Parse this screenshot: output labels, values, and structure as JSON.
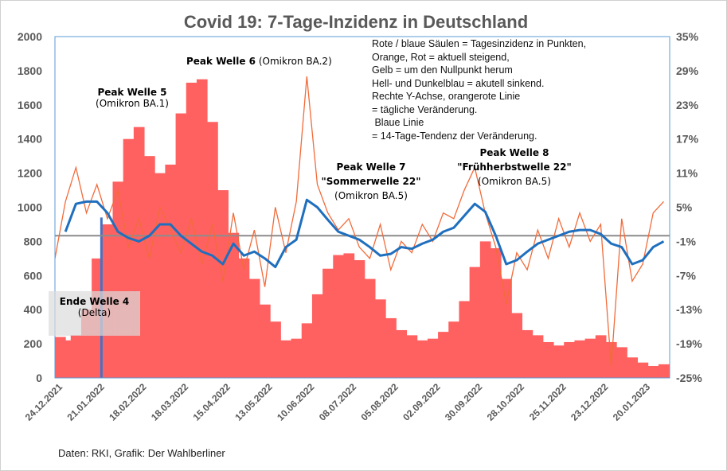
{
  "chart_data": {
    "type": "bar",
    "title": "Covid 19: 7-Tage-Inzidenz in Deutschland",
    "start_date": "24.12.2021",
    "step_days": 7,
    "x_tick_labels": [
      "24.12.2021",
      "21.01.2022",
      "18.02.2022",
      "18.03.2022",
      "15.04.2022",
      "13.05.2022",
      "10.06.2022",
      "08.07.2022",
      "05.08.2022",
      "02.09.2022",
      "30.09.2022",
      "28.10.2022",
      "25.11.2022",
      "23.12.2022",
      "20.01.2023"
    ],
    "y_left": {
      "min": 0,
      "max": 2000,
      "ticks": [
        0,
        200,
        400,
        600,
        800,
        1000,
        1200,
        1400,
        1600,
        1800,
        2000
      ]
    },
    "y_right": {
      "min": -25,
      "max": 35,
      "ticks": [
        "35%",
        "29%",
        "23%",
        "17%",
        "11%",
        "5%",
        "-1%",
        "-7%",
        "-13%",
        "-19%",
        "-25%"
      ],
      "tick_values": [
        35,
        29,
        23,
        17,
        11,
        5,
        -1,
        -7,
        -13,
        -19,
        -25
      ]
    },
    "series": [
      {
        "name": "Tagesinzidenz",
        "axis": "left",
        "type": "bar",
        "color": "#ff6161",
        "values": [
          240,
          220,
          250,
          400,
          700,
          900,
          1150,
          1400,
          1470,
          1300,
          1200,
          1250,
          1550,
          1730,
          1750,
          1500,
          1100,
          850,
          700,
          580,
          430,
          330,
          220,
          230,
          320,
          490,
          640,
          720,
          730,
          690,
          580,
          460,
          350,
          280,
          250,
          220,
          230,
          270,
          330,
          450,
          650,
          800,
          760,
          580,
          380,
          280,
          250,
          210,
          190,
          210,
          220,
          230,
          250,
          210,
          180,
          120,
          90,
          70,
          80
        ]
      },
      {
        "name": "Tägliche Veränderung",
        "axis": "right",
        "type": "line",
        "color": "#f26b3a",
        "values": [
          -4,
          6,
          12,
          4,
          9,
          3,
          8,
          -2,
          3,
          -4,
          5,
          1,
          -3,
          3,
          -5,
          2,
          -8,
          4,
          -6,
          1,
          -9,
          5,
          -3,
          6,
          28,
          9,
          4,
          1,
          3,
          -2,
          -4,
          2,
          -6,
          -1,
          -3,
          2,
          -1,
          4,
          3,
          8,
          12,
          4,
          -2,
          -12,
          -3,
          -6,
          1,
          -4,
          3,
          -2,
          4,
          -1,
          2,
          -23,
          3,
          -8,
          -5,
          4,
          6
        ]
      },
      {
        "name": "14-Tage-Tendenz",
        "axis": "right",
        "type": "line",
        "color": "#1f6fbf",
        "values": [
          null,
          0.7,
          5.6,
          6,
          6,
          4,
          0.7,
          -0.4,
          -1,
          0,
          2,
          2,
          0,
          -1.4,
          -2.8,
          -3.5,
          -5,
          -1.4,
          -3.5,
          -2.8,
          -4,
          -5.5,
          -2,
          -0.7,
          6.3,
          5,
          2.8,
          0.7,
          0,
          -0.7,
          -2,
          -3.5,
          -3.2,
          -2,
          -2.3,
          -1.4,
          -0.7,
          0.7,
          1.4,
          3.5,
          5.6,
          4.2,
          0,
          -5,
          -4.3,
          -2.8,
          -1.4,
          -0.7,
          0,
          0.7,
          1,
          1,
          0.3,
          -1.4,
          -2,
          -5,
          -4.3,
          -2,
          -1
        ]
      },
      {
        "name": "Nulllinie",
        "axis": "right",
        "type": "hline",
        "value": 0,
        "color": "#8c8c8c"
      },
      {
        "name": "Ende Welle 4 Marker",
        "axis": "left",
        "type": "bar",
        "color": "#4472c4",
        "day": 31,
        "value": 940
      }
    ]
  },
  "annotations": {
    "peak5": {
      "title": "Peak Welle 5",
      "sub": "(Omikron BA.1)"
    },
    "peak6": {
      "title": "Peak Welle 6",
      "sub": "(Omikron BA.2)"
    },
    "peak7": {
      "title": "Peak Welle 7",
      "title2": "\"Sommerwelle 22\"",
      "sub": "(Omikron BA.5)"
    },
    "peak8": {
      "title": "Peak Welle 8",
      "title2": "\"Frühherbstwelle  22\"",
      "sub": "(Omikron BA.5)"
    },
    "ende4": {
      "title": "Ende Welle 4",
      "sub": "(Delta)"
    }
  },
  "legend": "Rote / blaue Säulen = Tagesinzidenz in Punkten,\nOrange, Rot = aktuell steigend,\nGelb = um den Nullpunkt herum\nHell- und Dunkelblau = akutell sinkend.\nRechte Y-Achse, orangerote Linie\n= tägliche Veränderung.\n Blaue Linie\n= 14-Tage-Tendenz der Veränderung.",
  "source": "Daten: RKI, Grafik: Der Wahlberliner"
}
